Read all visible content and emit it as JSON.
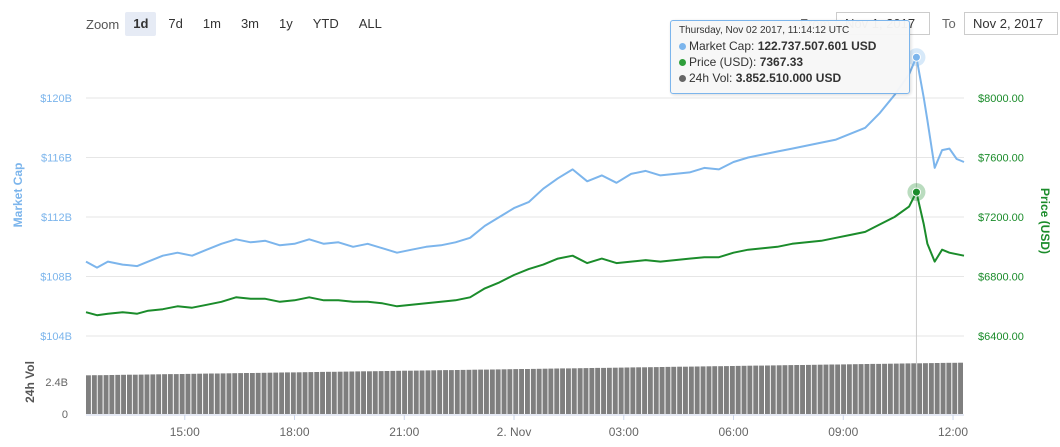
{
  "zoom": {
    "label": "Zoom",
    "buttons": [
      "1d",
      "7d",
      "1m",
      "3m",
      "1y",
      "YTD",
      "ALL"
    ],
    "active": "1d"
  },
  "range": {
    "from_label": "From",
    "from_value": "Nov 1, 2017",
    "to_label": "To",
    "to_value": "Nov 2, 2017"
  },
  "tooltip": {
    "header": "Thursday, Nov 02 2017, 11:14:12 UTC",
    "rows": [
      {
        "name": "Market Cap",
        "value": "122.737.507.601 USD",
        "color": "#7cb5ec"
      },
      {
        "name": "Price (USD)",
        "value": "7367.33",
        "color": "#2f9e3a"
      },
      {
        "name": "24h Vol",
        "value": "3.852.510.000 USD",
        "color": "#666666"
      }
    ]
  },
  "colors": {
    "market_cap": "#7cb5ec",
    "price": "#1b8c2b",
    "volume_bar": "#7f7f7f",
    "grid": "#e6e6e6",
    "crosshair": "#cccccc"
  },
  "chart_data": {
    "type": "line",
    "grid": true,
    "legend": "none",
    "x_tick_labels": [
      "15:00",
      "18:00",
      "21:00",
      "2. Nov",
      "03:00",
      "06:00",
      "09:00",
      "12:00"
    ],
    "x_tick_hours": [
      15,
      18,
      21,
      24,
      27,
      30,
      33,
      36
    ],
    "x_range_hours": [
      12.3,
      36.3
    ],
    "left_axis": {
      "label": "Market Cap",
      "ticks": [
        104,
        108,
        112,
        116,
        120
      ],
      "tick_labels": [
        "$104B",
        "$108B",
        "$112B",
        "$116B",
        "$120B"
      ],
      "range": [
        104,
        120
      ]
    },
    "right_axis": {
      "label": "Price (USD)",
      "ticks": [
        6400,
        6800,
        7200,
        7600,
        8000
      ],
      "tick_labels": [
        "$6400.00",
        "$6800.00",
        "$7200.00",
        "$7600.00",
        "$8000.00"
      ],
      "range": [
        6400,
        8000
      ]
    },
    "volume_axis": {
      "label": "24h Vol",
      "tick_labels": [
        "0",
        "2.4B"
      ],
      "ticks": [
        0,
        2.4
      ],
      "range": [
        0,
        4.8
      ]
    },
    "series": [
      {
        "name": "Market Cap",
        "axis": "left",
        "x": [
          12.3,
          12.6,
          12.9,
          13.3,
          13.7,
          14.0,
          14.4,
          14.8,
          15.2,
          15.6,
          16.0,
          16.4,
          16.8,
          17.2,
          17.6,
          18.0,
          18.4,
          18.8,
          19.2,
          19.6,
          20.0,
          20.4,
          20.8,
          21.2,
          21.6,
          22.0,
          22.4,
          22.8,
          23.2,
          23.6,
          24.0,
          24.4,
          24.8,
          25.2,
          25.6,
          26.0,
          26.4,
          26.8,
          27.2,
          27.6,
          28.0,
          28.4,
          28.8,
          29.2,
          29.6,
          30.0,
          30.4,
          30.8,
          31.2,
          31.6,
          32.0,
          32.4,
          32.8,
          33.2,
          33.6,
          34.0,
          34.4,
          34.8,
          35.0,
          35.2,
          35.3,
          35.5,
          35.7,
          35.9,
          36.1,
          36.3
        ],
        "values": [
          109.0,
          108.6,
          109.0,
          108.8,
          108.7,
          109.0,
          109.4,
          109.6,
          109.4,
          109.8,
          110.2,
          110.5,
          110.3,
          110.4,
          110.1,
          110.2,
          110.5,
          110.2,
          110.3,
          110.0,
          110.2,
          109.9,
          109.6,
          109.8,
          110.0,
          110.1,
          110.3,
          110.6,
          111.4,
          112.0,
          112.6,
          113.0,
          113.9,
          114.6,
          115.2,
          114.4,
          114.8,
          114.3,
          114.9,
          115.1,
          114.8,
          114.9,
          115.0,
          115.3,
          115.2,
          115.7,
          116.0,
          116.2,
          116.4,
          116.6,
          116.8,
          117.0,
          117.2,
          117.6,
          118.0,
          119.0,
          120.2,
          121.6,
          122.74,
          120.0,
          118.5,
          115.3,
          116.5,
          116.6,
          115.9,
          115.7
        ]
      },
      {
        "name": "Price (USD)",
        "axis": "right",
        "x": [
          12.3,
          12.6,
          12.9,
          13.3,
          13.7,
          14.0,
          14.4,
          14.8,
          15.2,
          15.6,
          16.0,
          16.4,
          16.8,
          17.2,
          17.6,
          18.0,
          18.4,
          18.8,
          19.2,
          19.6,
          20.0,
          20.4,
          20.8,
          21.2,
          21.6,
          22.0,
          22.4,
          22.8,
          23.2,
          23.6,
          24.0,
          24.4,
          24.8,
          25.2,
          25.6,
          26.0,
          26.4,
          26.8,
          27.2,
          27.6,
          28.0,
          28.4,
          28.8,
          29.2,
          29.6,
          30.0,
          30.4,
          30.8,
          31.2,
          31.6,
          32.0,
          32.4,
          32.8,
          33.2,
          33.6,
          34.0,
          34.4,
          34.8,
          35.0,
          35.2,
          35.3,
          35.5,
          35.7,
          35.9,
          36.1,
          36.3
        ],
        "values": [
          6560,
          6540,
          6550,
          6560,
          6550,
          6570,
          6580,
          6600,
          6590,
          6610,
          6630,
          6660,
          6650,
          6650,
          6630,
          6640,
          6660,
          6640,
          6640,
          6630,
          6630,
          6620,
          6600,
          6610,
          6620,
          6630,
          6640,
          6660,
          6720,
          6760,
          6810,
          6850,
          6880,
          6920,
          6940,
          6890,
          6920,
          6890,
          6900,
          6910,
          6900,
          6910,
          6920,
          6930,
          6930,
          6960,
          6980,
          6990,
          7000,
          7020,
          7030,
          7040,
          7060,
          7080,
          7100,
          7150,
          7200,
          7270,
          7367.33,
          7150,
          7020,
          6900,
          6980,
          6960,
          6950,
          6940
        ]
      },
      {
        "name": "24h Vol",
        "axis": "volume",
        "type": "bar",
        "x_start": 12.3,
        "x_end": 36.3,
        "values_start": 2.9,
        "values_end": 3.85
      }
    ]
  }
}
